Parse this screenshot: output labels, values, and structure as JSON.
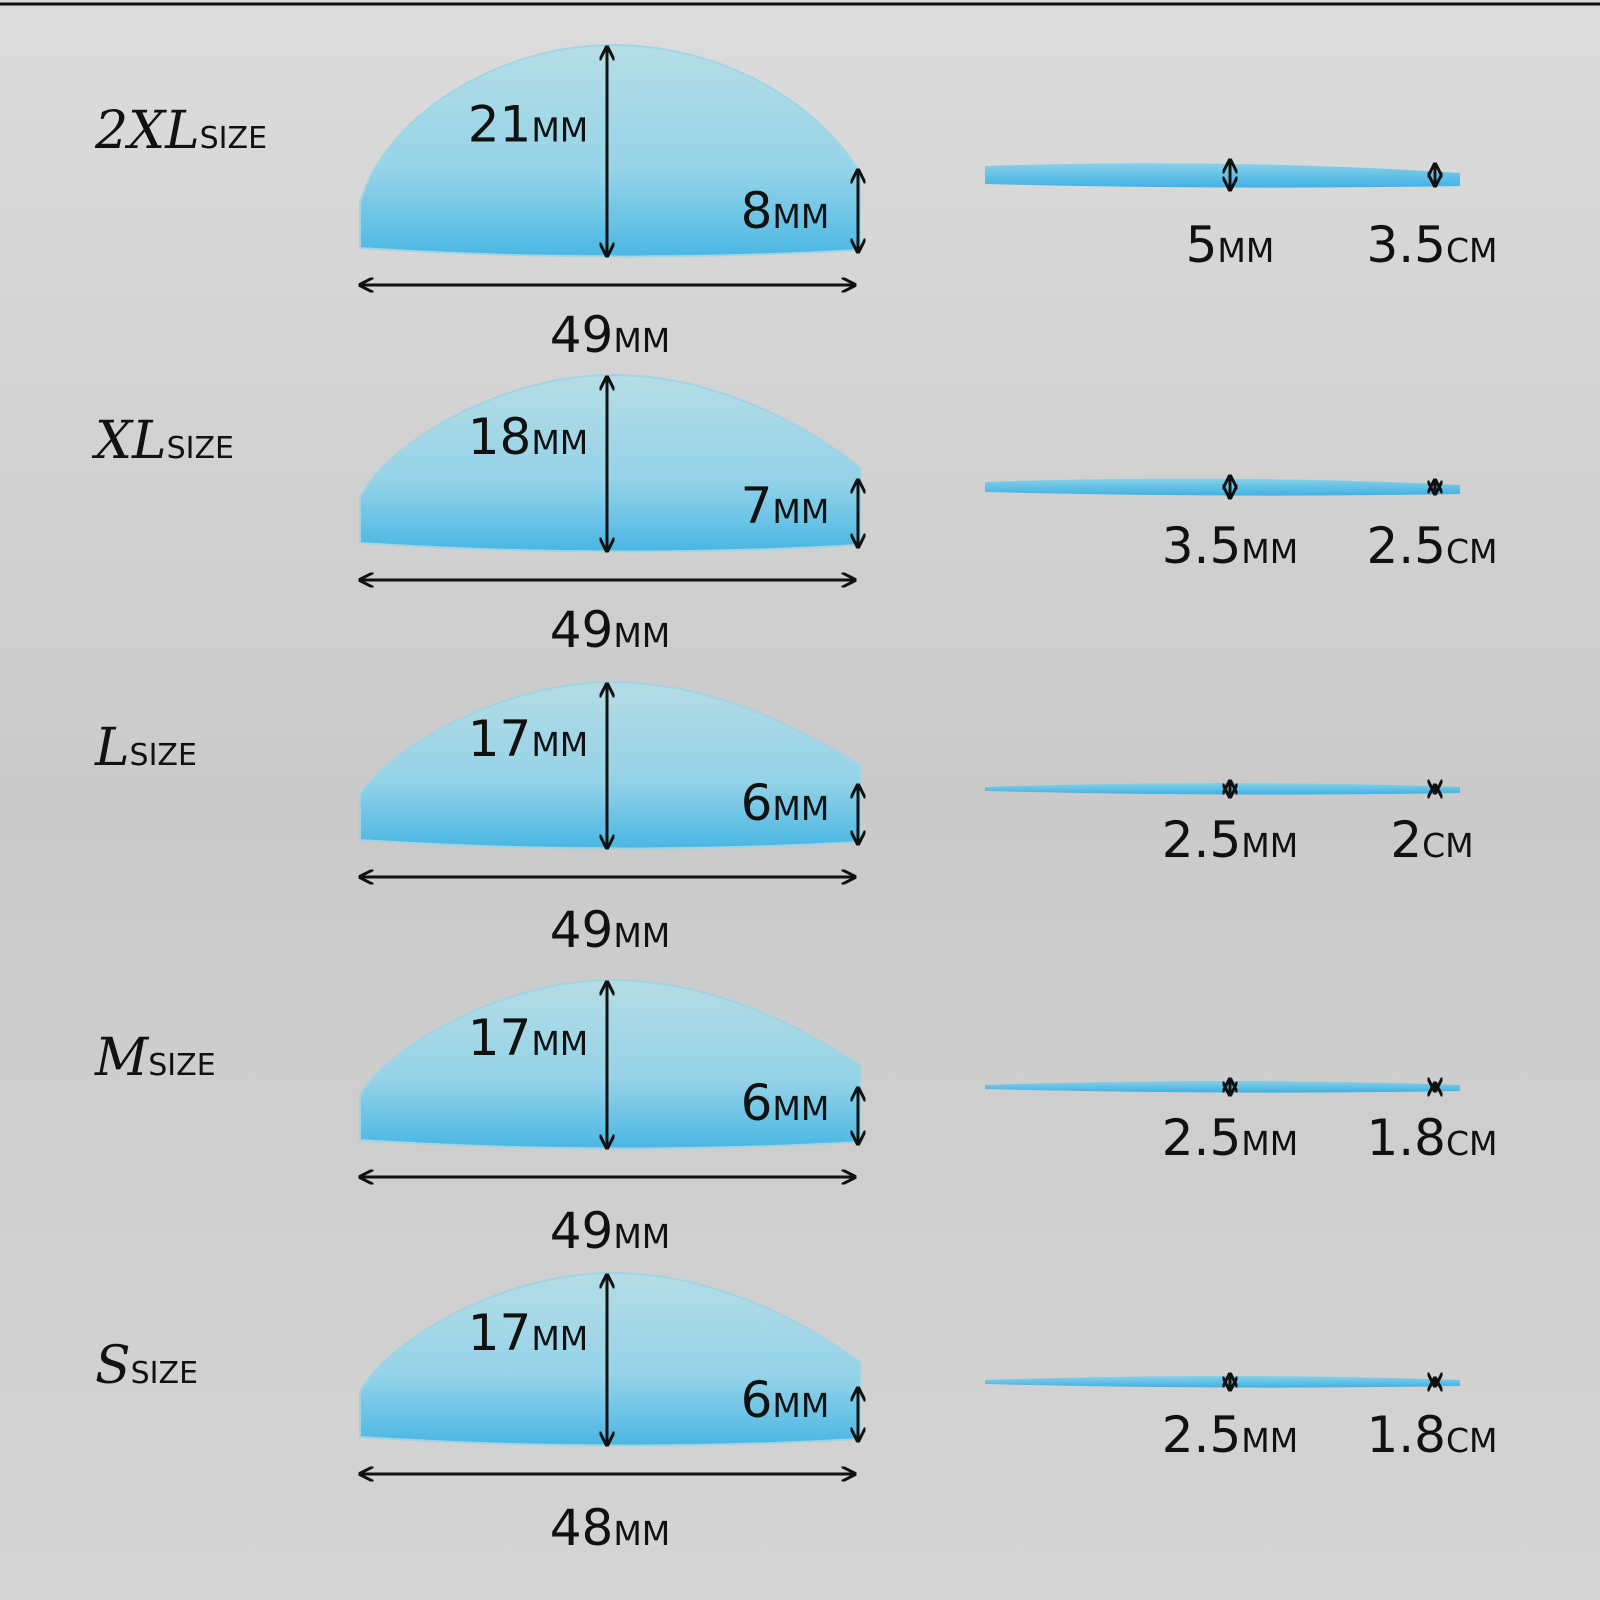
{
  "sizes": [
    {
      "name": "2XL",
      "suffix": "SIZE",
      "height": {
        "value": "21",
        "unit": "MM"
      },
      "edge": {
        "value": "8",
        "unit": "MM"
      },
      "width": {
        "value": "49",
        "unit": "MM"
      },
      "thickness": {
        "value": "5",
        "unit": "MM"
      },
      "tip": {
        "value": "3.5",
        "unit": "CM"
      }
    },
    {
      "name": "XL",
      "suffix": "SIZE",
      "height": {
        "value": "18",
        "unit": "MM"
      },
      "edge": {
        "value": "7",
        "unit": "MM"
      },
      "width": {
        "value": "49",
        "unit": "MM"
      },
      "thickness": {
        "value": "3.5",
        "unit": "MM"
      },
      "tip": {
        "value": "2.5",
        "unit": "CM"
      }
    },
    {
      "name": "L",
      "suffix": "SIZE",
      "height": {
        "value": "17",
        "unit": "MM"
      },
      "edge": {
        "value": "6",
        "unit": "MM"
      },
      "width": {
        "value": "49",
        "unit": "MM"
      },
      "thickness": {
        "value": "2.5",
        "unit": "MM"
      },
      "tip": {
        "value": "2",
        "unit": "CM"
      }
    },
    {
      "name": "M",
      "suffix": "SIZE",
      "height": {
        "value": "17",
        "unit": "MM"
      },
      "edge": {
        "value": "6",
        "unit": "MM"
      },
      "width": {
        "value": "49",
        "unit": "MM"
      },
      "thickness": {
        "value": "2.5",
        "unit": "MM"
      },
      "tip": {
        "value": "1.8",
        "unit": "CM"
      }
    },
    {
      "name": "S",
      "suffix": "SIZE",
      "height": {
        "value": "17",
        "unit": "MM"
      },
      "edge": {
        "value": "6",
        "unit": "MM"
      },
      "width": {
        "value": "48",
        "unit": "MM"
      },
      "thickness": {
        "value": "2.5",
        "unit": "MM"
      },
      "tip": {
        "value": "1.8",
        "unit": "CM"
      }
    }
  ]
}
